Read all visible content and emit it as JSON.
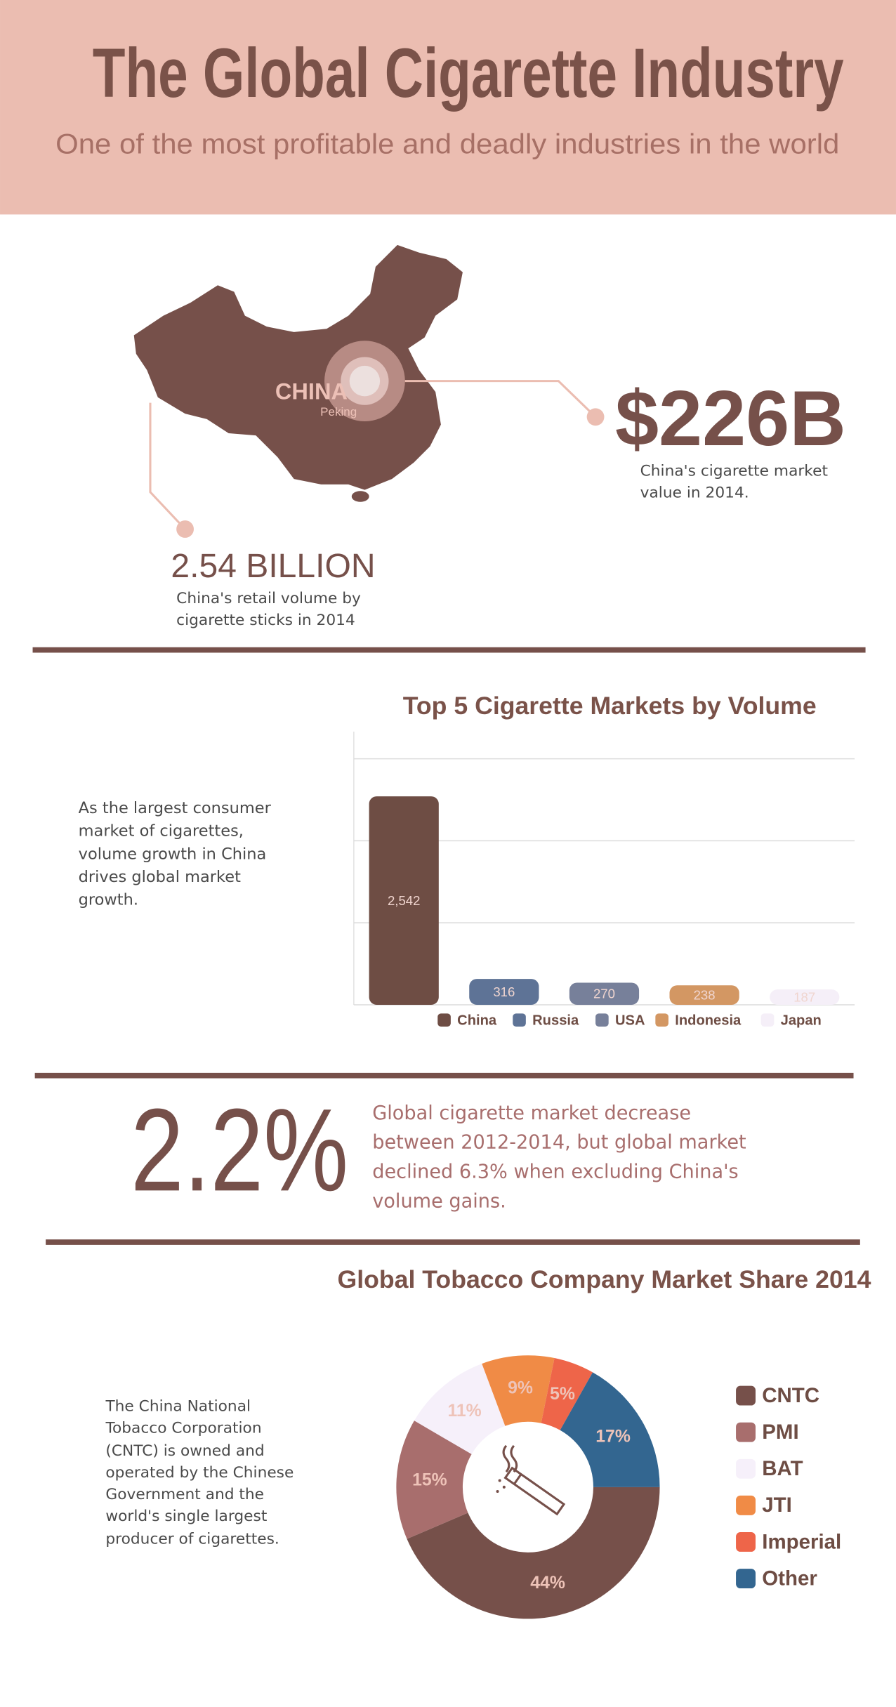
{
  "header": {
    "title": "The Global Cigarette Industry",
    "subtitle": "One of the most profitable and deadly industries in the world"
  },
  "china": {
    "map_label": "CHINA",
    "city": "Peking",
    "market_value": "$226B",
    "market_value_caption": "China's cigarette market value in 2014.",
    "volume": "2.54 BILLION",
    "volume_caption": "China's retail volume by cigarette sticks in 2014"
  },
  "markets": {
    "text": "As the largest consumer market of cigarettes, volume growth in China drives global market growth."
  },
  "decline": {
    "value": "2.2%",
    "text": "Global cigarette market decrease between 2012-2014, but global market declined 6.3% when excluding China's volume gains."
  },
  "share": {
    "text": "The China National Tobacco Corporation (CNTC) is owned and operated by the Chinese Government and the world's single largest producer of cigarettes."
  },
  "chart_data": [
    {
      "type": "bar",
      "title": "Top 5 Cigarette Markets by Volume",
      "categories": [
        "China",
        "Russia",
        "USA",
        "Indonesia",
        "Japan"
      ],
      "values": [
        2542,
        316,
        270,
        238,
        187
      ],
      "value_labels": [
        "2,542",
        "316",
        "270",
        "238",
        "187"
      ],
      "colors": [
        "#6e4d44",
        "#5e7396",
        "#77809a",
        "#d39763",
        "#f5eff8"
      ],
      "ylim": [
        0,
        3000
      ],
      "yticks": [
        0,
        1000,
        2000,
        3000
      ],
      "grid": true,
      "legend": "bottom"
    },
    {
      "type": "donut",
      "title": "Global Tobacco Company Market Share 2014",
      "categories": [
        "CNTC",
        "PMI",
        "BAT",
        "JTI",
        "Imperial",
        "Other"
      ],
      "values": [
        44,
        15,
        11,
        9,
        5,
        17
      ],
      "value_labels": [
        "44%",
        "15%",
        "11%",
        "9%",
        "5%",
        "17%"
      ],
      "colors": [
        "#76504a",
        "#a86e6d",
        "#f6f0fa",
        "#f08b46",
        "#ee6549",
        "#336690"
      ],
      "legend": "right"
    }
  ]
}
